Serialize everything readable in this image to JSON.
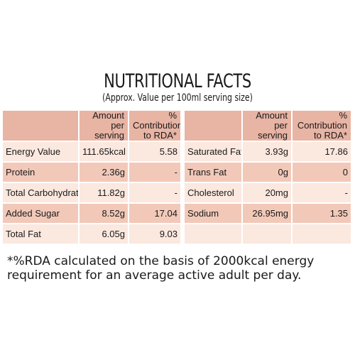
{
  "title": "NUTRITIONAL FACTS",
  "subtitle": "(Approx. Value per 100ml serving size)",
  "columns": {
    "amount": "Amount per serving",
    "rda_left": "% Contribution to RDA*",
    "rda_right": "% Contribution to RDA*"
  },
  "left_rows": [
    {
      "nutrient": "Energy Value",
      "amount": "111.65kcal",
      "rda": "5.58"
    },
    {
      "nutrient": "Protein",
      "amount": "2.36g",
      "rda": "-"
    },
    {
      "nutrient": "Total Carbohydrate",
      "amount": "11.82g",
      "rda": "-"
    },
    {
      "nutrient": "Added Sugar",
      "amount": "8.52g",
      "rda": "17.04"
    },
    {
      "nutrient": "Total Fat",
      "amount": "6.05g",
      "rda": "9.03"
    }
  ],
  "right_rows": [
    {
      "nutrient": "Saturated Fat",
      "amount": "3.93g",
      "rda": "17.86"
    },
    {
      "nutrient": "Trans Fat",
      "amount": "0g",
      "rda": "0"
    },
    {
      "nutrient": "Cholesterol",
      "amount": "20mg",
      "rda": "-"
    },
    {
      "nutrient": "Sodium",
      "amount": "26.95mg",
      "rda": "1.35"
    },
    {
      "nutrient": "",
      "amount": "",
      "rda": ""
    }
  ],
  "footnote": "*%RDA calculated on the basis of  2000kcal energy requirement for an average active adult per day.",
  "colors": {
    "header": "#e8b4a4",
    "row_light": "#fbe8df",
    "row_dark": "#f2c9b9"
  }
}
